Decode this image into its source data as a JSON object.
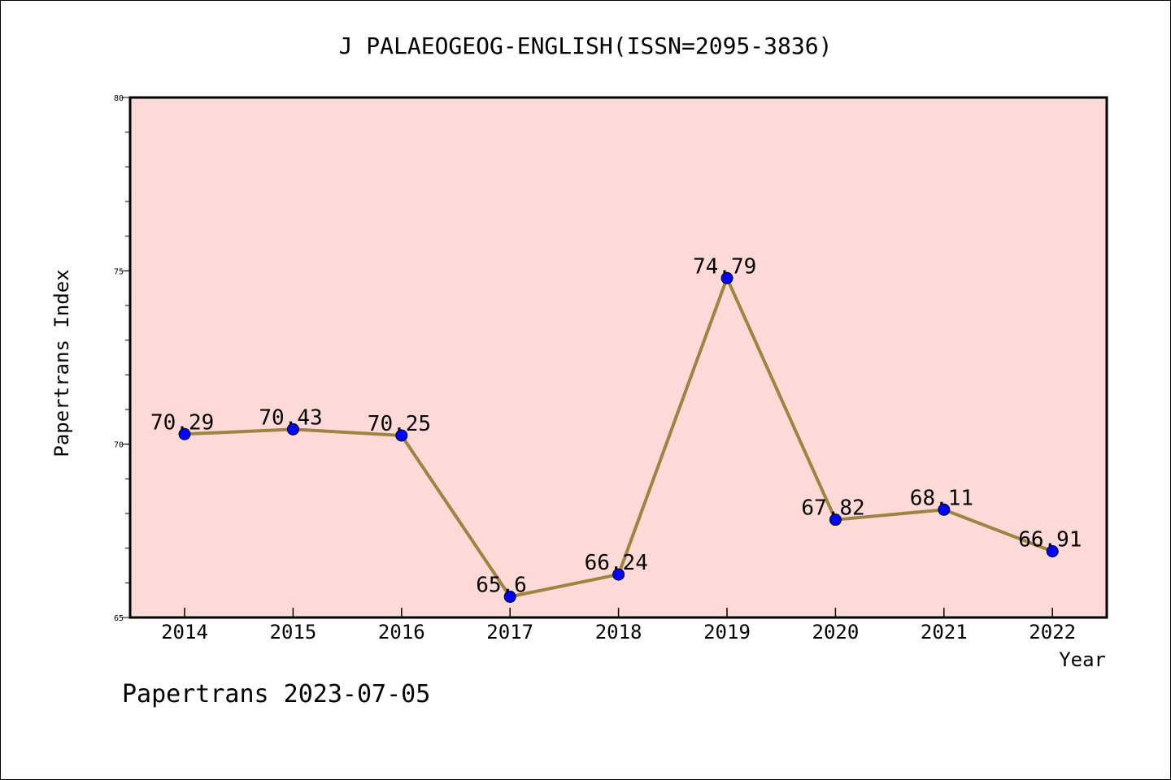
{
  "chart_data": {
    "type": "line",
    "title": "J PALAEOGEOG-ENGLISH(ISSN=2095-3836)",
    "xlabel": "Year",
    "ylabel": "Papertrans Index",
    "categories": [
      "2014",
      "2015",
      "2016",
      "2017",
      "2018",
      "2019",
      "2020",
      "2021",
      "2022"
    ],
    "values": [
      70.29,
      70.43,
      70.25,
      65.6,
      66.24,
      74.79,
      67.82,
      68.11,
      66.91
    ],
    "data_labels": [
      "70.29",
      "70.43",
      "70.25",
      "65.6",
      "66.24",
      "74.79",
      "67.82",
      "68.11",
      "66.91"
    ],
    "ylim": [
      65,
      80
    ],
    "yticks": [
      65,
      70,
      75,
      80
    ],
    "grid": false,
    "colors": {
      "plot_background": "#fddad7",
      "line": "#9b8540",
      "marker": "#0000ff",
      "marker_edge": "#000000",
      "axes": "#000000"
    }
  },
  "footer": "Papertrans 2023-07-05"
}
